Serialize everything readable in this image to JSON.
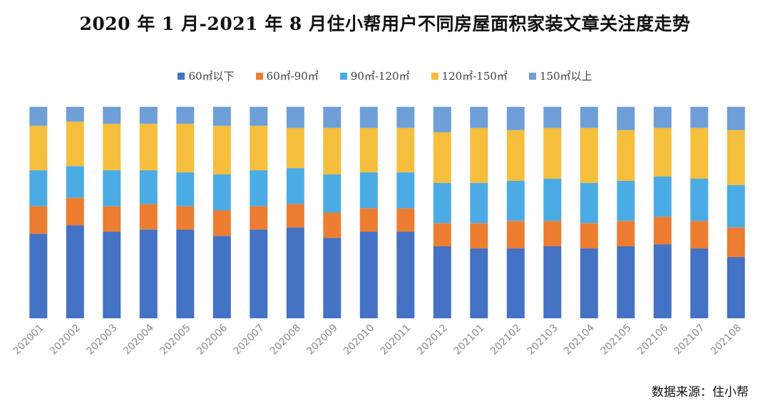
{
  "page_title": "2020 年 1 月-2021 年 8 月住小帮用户不同房屋面积家装文章关注度走势",
  "source_text": "数据来源：住小帮",
  "chart_data": {
    "type": "bar",
    "stacked": true,
    "title": "2020 年 1 月-2021 年 8 月住小帮用户不同房屋面积家装文章关注度走势",
    "xlabel": "",
    "ylabel": "",
    "ylim": [
      0,
      100
    ],
    "legend_position": "top-center",
    "grid": false,
    "categories": [
      "202001",
      "202002",
      "202003",
      "202004",
      "202005",
      "202006",
      "202007",
      "202008",
      "202009",
      "202010",
      "202011",
      "202012",
      "202101",
      "202102",
      "202103",
      "202104",
      "202105",
      "202106",
      "202107",
      "202108"
    ],
    "series": [
      {
        "name": "60㎡以下",
        "color": "#4472C4",
        "values": [
          40,
          44,
          41,
          42,
          42,
          39,
          42,
          43,
          38,
          41,
          41,
          34,
          33,
          33,
          34,
          33,
          34,
          35,
          33,
          29
        ]
      },
      {
        "name": "60㎡-90㎡",
        "color": "#ED7D31",
        "values": [
          13,
          13,
          12,
          12,
          11,
          12,
          11,
          11,
          12,
          11,
          11,
          11,
          12,
          13,
          12,
          12,
          12,
          13,
          13,
          14
        ]
      },
      {
        "name": "90㎡-120㎡",
        "color": "#4BACE5",
        "values": [
          17,
          15,
          17,
          16,
          16,
          17,
          17,
          17,
          18,
          17,
          17,
          19,
          19,
          19,
          20,
          19,
          19,
          19,
          20,
          20
        ]
      },
      {
        "name": "120㎡-150㎡",
        "color": "#F5BE3C",
        "values": [
          21,
          21,
          22,
          22,
          23,
          23,
          21,
          19,
          22,
          21,
          21,
          24,
          26,
          24,
          24,
          26,
          24,
          23,
          24,
          26
        ]
      },
      {
        "name": "150㎡以上",
        "color": "#6E9FD8",
        "values": [
          9,
          7,
          8,
          8,
          8,
          9,
          9,
          10,
          10,
          10,
          10,
          12,
          10,
          11,
          10,
          10,
          11,
          10,
          10,
          11
        ]
      }
    ]
  }
}
